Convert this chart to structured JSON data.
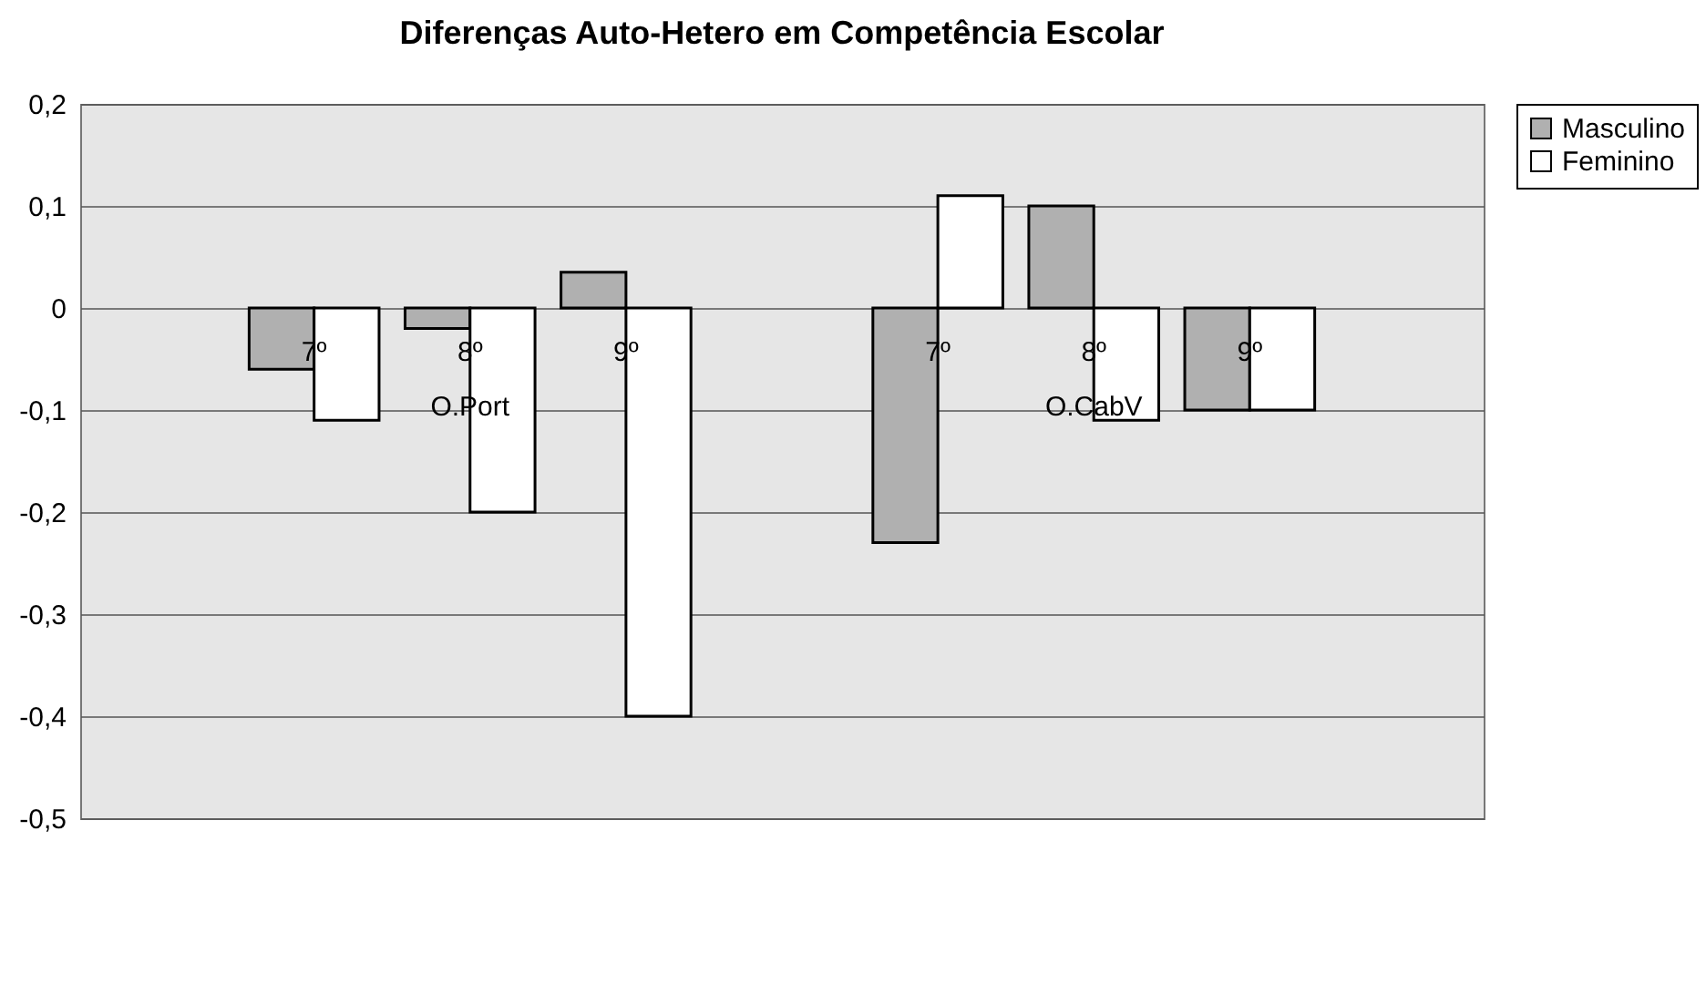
{
  "chart_data": {
    "type": "bar",
    "title": "Diferenças Auto-Hetero em Competência Escolar",
    "categories": [
      null,
      "7º",
      "8º",
      "9º",
      null,
      "7º",
      "8º",
      "9º",
      null
    ],
    "series": [
      {
        "name": "Masculino",
        "color": "#b0b0b0",
        "values": [
          null,
          -0.06,
          -0.02,
          0.035,
          null,
          -0.23,
          0.1,
          -0.1,
          null
        ]
      },
      {
        "name": "Feminino",
        "color": "#ffffff",
        "values": [
          null,
          -0.11,
          -0.2,
          -0.4,
          null,
          0.11,
          -0.11,
          -0.1,
          null
        ]
      }
    ],
    "annotations": [
      "O.Port",
      "O.CabV"
    ],
    "ylim": [
      -0.5,
      0.2
    ],
    "yticks": [
      {
        "value": -0.5,
        "label": "-0,5"
      },
      {
        "value": -0.4,
        "label": "-0,4"
      },
      {
        "value": -0.3,
        "label": "-0,3"
      },
      {
        "value": -0.2,
        "label": "-0,2"
      },
      {
        "value": -0.1,
        "label": "-0,1"
      },
      0,
      {
        "value": 0.1,
        "label": "0,1"
      },
      {
        "value": 0.2,
        "label": "0,2"
      }
    ],
    "grid": "y",
    "legend": "right"
  }
}
